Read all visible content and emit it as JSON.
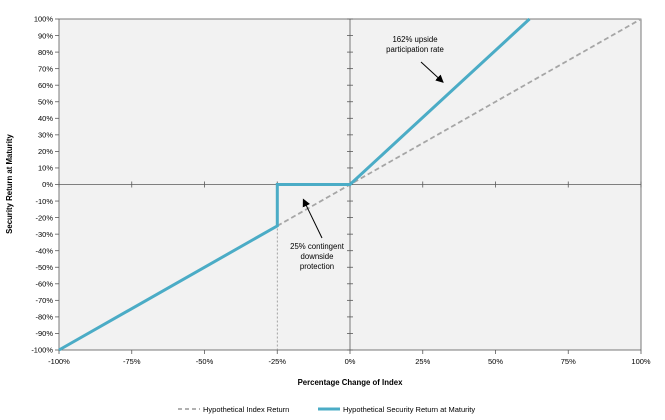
{
  "chart_data": {
    "type": "line",
    "title": "",
    "xlabel": "Percentage Change of Index",
    "ylabel": "Security Return at Maturity",
    "xlim": [
      -100,
      100
    ],
    "ylim": [
      -100,
      100
    ],
    "x_ticks": [
      "-100%",
      "-75%",
      "-50%",
      "-25%",
      "0%",
      "25%",
      "50%",
      "75%",
      "100%"
    ],
    "x_tick_values": [
      -100,
      -75,
      -50,
      -25,
      0,
      25,
      50,
      75,
      100
    ],
    "y_ticks": [
      "100%",
      "90%",
      "80%",
      "70%",
      "60%",
      "50%",
      "40%",
      "30%",
      "20%",
      "10%",
      "0%",
      "-10%",
      "-20%",
      "-30%",
      "-40%",
      "-50%",
      "-60%",
      "-70%",
      "-80%",
      "-90%",
      "-100%"
    ],
    "y_tick_values": [
      100,
      90,
      80,
      70,
      60,
      50,
      40,
      30,
      20,
      10,
      0,
      -10,
      -20,
      -30,
      -40,
      -50,
      -60,
      -70,
      -80,
      -90,
      -100
    ],
    "series": [
      {
        "name": "Hypothetical Index Return",
        "style": "dashed",
        "color": "#a6a6a6",
        "x": [
          -25,
          100
        ],
        "y": [
          -25,
          100
        ]
      },
      {
        "name": "Hypothetical Security Return at Maturity",
        "style": "solid",
        "color": "#4bacc6",
        "x": [
          -100,
          -25,
          -25,
          0,
          61.7
        ],
        "y": [
          -100,
          -25,
          0,
          0,
          100
        ]
      }
    ],
    "annotations": [
      {
        "id": "upside",
        "lines": [
          "162% upside",
          "participation rate"
        ],
        "arrow_to": [
          33,
          60
        ]
      },
      {
        "id": "downside",
        "lines": [
          "25% contingent",
          "downside",
          "protection"
        ],
        "arrow_to": [
          -15,
          -6
        ]
      }
    ],
    "reference_line": {
      "x": -25,
      "style": "dotted"
    },
    "legend": {
      "position": "bottom-center"
    }
  }
}
